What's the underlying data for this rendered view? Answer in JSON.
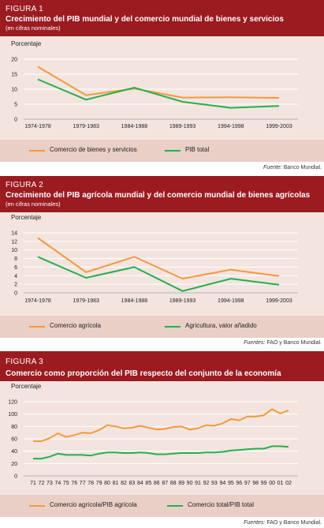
{
  "colors": {
    "header": "#9b1b20",
    "body": "#f3e4df",
    "legend": "#e9cfc6",
    "orange": "#f39a3b",
    "green": "#22b14c"
  },
  "figures": [
    {
      "number": "FIGURA 1",
      "title": "Crecimiento del PIB mundial y del comercio mundial de bienes y servicios",
      "subtitle": "(en cifras nominales)",
      "source_label": "Fuente:",
      "source_text": "Banco Mundial."
    },
    {
      "number": "FIGURA 2",
      "title": "Crecimiento del PIB agrícola mundial y del comercio mundial de bienes agrícolas",
      "subtitle": "(en cifras nominales)",
      "source_label": "Fuentes:",
      "source_text": "FAO y Banco Mundial."
    },
    {
      "number": "FIGURA 3",
      "title": "Comercio como proporción del PIB respecto del conjunto de la economía",
      "subtitle": "",
      "source_label": "Fuentes:",
      "source_text": "FAO y Banco Mundial."
    }
  ],
  "chart_data": [
    {
      "type": "line",
      "title": "Crecimiento del PIB mundial y del comercio mundial de bienes y servicios",
      "ylabel": "Porcentaje",
      "ylim": [
        0,
        20
      ],
      "yticks": [
        0,
        5,
        10,
        15,
        20
      ],
      "grid": true,
      "legend": "bottom",
      "categories": [
        "1974-1978",
        "1979-1983",
        "1984-1988",
        "1989-1993",
        "1994-1998",
        "1999-2003"
      ],
      "series": [
        {
          "name": "Comercio de bienes y servicios",
          "color": "#f39a3b",
          "values": [
            17.5,
            8,
            10.2,
            7.2,
            7.3,
            7.1
          ]
        },
        {
          "name": "PIB total",
          "color": "#22b14c",
          "values": [
            13.3,
            6.5,
            10.5,
            5.8,
            3.8,
            4.4
          ]
        }
      ]
    },
    {
      "type": "line",
      "title": "Crecimiento del PIB agrícola mundial y del comercio mundial de bienes agrícolas",
      "ylabel": "Porcentaje",
      "ylim": [
        0,
        14
      ],
      "yticks": [
        0,
        2,
        4,
        6,
        8,
        10,
        12,
        14
      ],
      "grid": true,
      "legend": "bottom",
      "categories": [
        "1974-1978",
        "1979-1983",
        "1984-1988",
        "1989-1993",
        "1994-1998",
        "1999-2003"
      ],
      "series": [
        {
          "name": "Comercio agrícola",
          "color": "#f39a3b",
          "values": [
            12.8,
            4.8,
            8.4,
            3.3,
            5.4,
            3.9
          ]
        },
        {
          "name": "Agricultura, valor añadido",
          "color": "#22b14c",
          "values": [
            8.4,
            3.5,
            6.0,
            0.4,
            3.3,
            1.9
          ]
        }
      ]
    },
    {
      "type": "line",
      "title": "Comercio como proporción del PIB respecto del conjunto de la economía",
      "ylabel": "Porcentaje",
      "ylim": [
        0,
        120
      ],
      "yticks": [
        0,
        20,
        40,
        60,
        80,
        100,
        120
      ],
      "grid": true,
      "legend": "bottom",
      "categories": [
        "71",
        "72",
        "73",
        "74",
        "75",
        "76",
        "77",
        "78",
        "79",
        "80",
        "81",
        "82",
        "83",
        "84",
        "85",
        "86",
        "87",
        "88",
        "89",
        "90",
        "91",
        "92",
        "93",
        "94",
        "95",
        "96",
        "97",
        "98",
        "99",
        "00",
        "01",
        "02"
      ],
      "series": [
        {
          "name": "Comercio agrícola/PIB agrícola",
          "color": "#f39a3b",
          "values": [
            56,
            56,
            61,
            69,
            63,
            66,
            70,
            69,
            74,
            82,
            80,
            77,
            78,
            81,
            78,
            75,
            76,
            79,
            80,
            75,
            77,
            82,
            81,
            85,
            92,
            90,
            96,
            96,
            98,
            108,
            101,
            106
          ]
        },
        {
          "name": "Comercio total/PIB total",
          "color": "#22b14c",
          "values": [
            28,
            28,
            31,
            36,
            34,
            34,
            34,
            33,
            36,
            38,
            38,
            37,
            37,
            38,
            37,
            35,
            35,
            36,
            37,
            37,
            37,
            38,
            38,
            39,
            41,
            42,
            43,
            44,
            44,
            48,
            48,
            47
          ]
        }
      ]
    }
  ]
}
